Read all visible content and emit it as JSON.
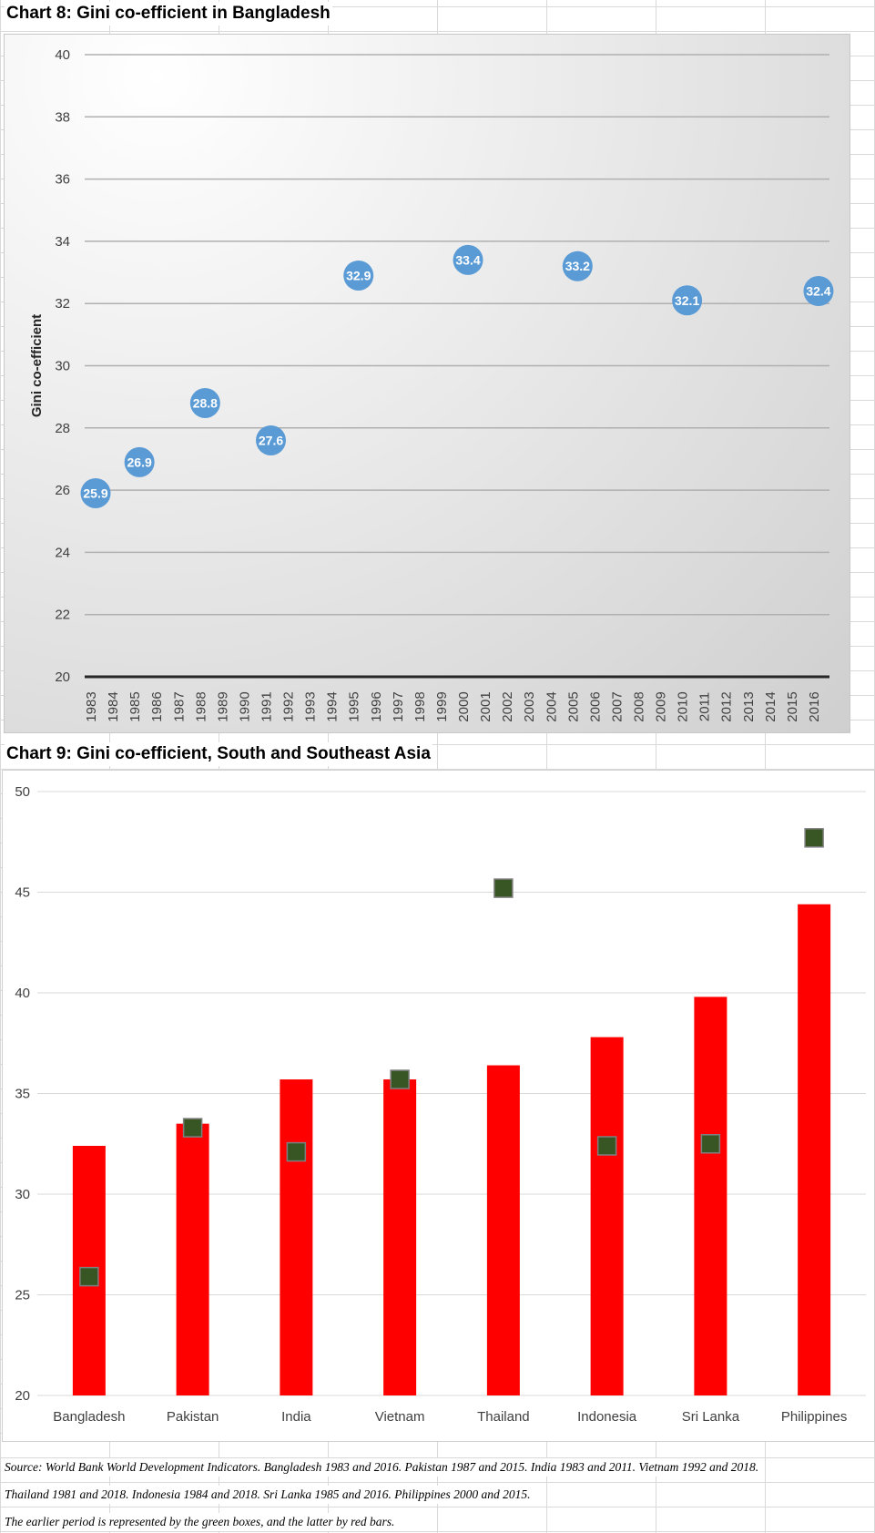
{
  "chart8": {
    "title": "Chart 8: Gini co-efficient in Bangladesh",
    "chart_data": {
      "type": "scatter",
      "title": "Chart 8: Gini co-efficient in Bangladesh",
      "xlabel": "",
      "ylabel": "Gini co-efficient",
      "ylim": [
        20,
        40
      ],
      "yticks": [
        20,
        22,
        24,
        26,
        28,
        30,
        32,
        34,
        36,
        38,
        40
      ],
      "categories": [
        "1983",
        "1984",
        "1985",
        "1986",
        "1987",
        "1988",
        "1989",
        "1990",
        "1991",
        "1992",
        "1993",
        "1994",
        "1995",
        "1996",
        "1997",
        "1998",
        "1999",
        "2000",
        "2001",
        "2002",
        "2003",
        "2004",
        "2005",
        "2006",
        "2007",
        "2008",
        "2009",
        "2010",
        "2011",
        "2012",
        "2013",
        "2014",
        "2015",
        "2016"
      ],
      "points": [
        {
          "x": "1983",
          "y": 25.9,
          "label": "25.9"
        },
        {
          "x": "1985",
          "y": 26.9,
          "label": "26.9"
        },
        {
          "x": "1988",
          "y": 28.8,
          "label": "28.8"
        },
        {
          "x": "1991",
          "y": 27.6,
          "label": "27.6"
        },
        {
          "x": "1995",
          "y": 32.9,
          "label": "32.9"
        },
        {
          "x": "2000",
          "y": 33.4,
          "label": "33.4"
        },
        {
          "x": "2005",
          "y": 33.2,
          "label": "33.2"
        },
        {
          "x": "2010",
          "y": 32.1,
          "label": "32.1"
        },
        {
          "x": "2016",
          "y": 32.4,
          "label": "32.4"
        }
      ],
      "grid": true,
      "legend": "none",
      "colors": {
        "marker": "#5b9bd5",
        "gridline": "#b0b0b0",
        "axis": "#262626"
      }
    }
  },
  "chart9": {
    "title": "Chart 9: Gini co-efficient, South and Southeast Asia",
    "chart_data": {
      "type": "bar",
      "title": "Chart 9: Gini co-efficient, South and Southeast Asia",
      "xlabel": "",
      "ylabel": "",
      "ylim": [
        20,
        50
      ],
      "yticks": [
        20,
        25,
        30,
        35,
        40,
        45,
        50
      ],
      "categories": [
        "Bangladesh",
        "Pakistan",
        "India",
        "Vietnam",
        "Thailand",
        "Indonesia",
        "Sri Lanka",
        "Philippines"
      ],
      "series": [
        {
          "name": "later period (red bars)",
          "type": "bar",
          "values": [
            32.4,
            33.5,
            35.7,
            35.7,
            36.4,
            37.8,
            39.8,
            44.4
          ]
        },
        {
          "name": "earlier period (green boxes)",
          "type": "marker",
          "values": [
            25.9,
            33.3,
            32.1,
            35.7,
            45.2,
            32.4,
            32.5,
            47.7
          ]
        }
      ],
      "grid": true,
      "legend": "none",
      "colors": {
        "bar": "#ff0000",
        "marker": "#375623",
        "marker_edge": "#7f7f7f",
        "gridline": "#d9d9d9"
      }
    }
  },
  "footnotes": {
    "line1": "Source: World Bank World Development Indicators. Bangladesh 1983 and 2016. Pakistan 1987 and 2015. India 1983 and 2011. Vietnam 1992 and 2018.",
    "line2": "Thailand 1981 and 2018. Indonesia 1984 and 2018. Sri Lanka 1985 and 2016. Philippines 2000 and 2015.",
    "line3": "The earlier period is represented by the green boxes, and the latter by red bars."
  }
}
